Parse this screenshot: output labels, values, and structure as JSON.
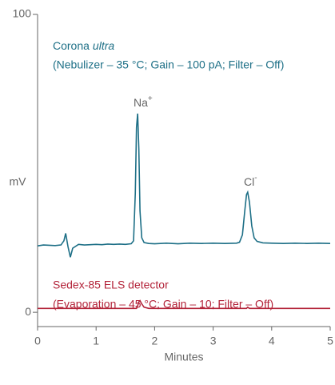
{
  "chart_data": {
    "type": "line",
    "xlabel": "Minutes",
    "ylabel": "mV",
    "xlim": [
      0,
      5
    ],
    "xticks": [
      0,
      1,
      2,
      3,
      4,
      5
    ],
    "ylim": [
      -4.8,
      100
    ],
    "yticks": [
      0,
      100
    ],
    "x": [
      0,
      0.1,
      0.2,
      0.3,
      0.4,
      0.45,
      0.48,
      0.52,
      0.56,
      0.6,
      0.7,
      0.8,
      0.9,
      1.0,
      1.1,
      1.2,
      1.3,
      1.4,
      1.5,
      1.6,
      1.64,
      1.67,
      1.69,
      1.71,
      1.73,
      1.75,
      1.78,
      1.82,
      1.9,
      2.0,
      2.2,
      2.4,
      2.6,
      2.8,
      3.0,
      3.2,
      3.4,
      3.45,
      3.5,
      3.54,
      3.57,
      3.59,
      3.62,
      3.66,
      3.7,
      3.75,
      3.85,
      4.0,
      4.2,
      4.4,
      4.6,
      4.8,
      5.0
    ],
    "series": [
      {
        "name": "Corona",
        "name_italic": "ultra",
        "settings": "(Nebulizer – 35 °C; Gain – 100 pA; Filter – Off)",
        "color": "#1d6f86",
        "values": [
          22.3,
          22.6,
          22.5,
          22.4,
          22.6,
          24,
          26.5,
          22,
          18.5,
          21.5,
          22.8,
          22.6,
          22.7,
          22.8,
          22.7,
          22.9,
          22.8,
          22.9,
          22.8,
          23,
          24,
          40,
          62,
          66.7,
          55,
          34,
          25,
          23.4,
          23.1,
          23,
          23.2,
          23,
          23.2,
          23.1,
          23.2,
          23.1,
          23.2,
          23.5,
          26,
          34,
          39.5,
          40.3,
          37,
          29,
          25,
          23.8,
          23.3,
          23.2,
          23.1,
          23.2,
          23.1,
          23.2,
          23.1
        ]
      },
      {
        "name": "Sedex-85 ELS detector",
        "settings": "(Evaporation – 45 °C; Gain – 10; Filter – Off)",
        "color": "#b32339",
        "values": [
          1.3,
          1.3,
          1.3,
          1.3,
          1.3,
          1.3,
          1.3,
          1.3,
          1.3,
          1.3,
          1.3,
          1.3,
          1.3,
          1.3,
          1.3,
          1.3,
          1.3,
          1.3,
          1.3,
          1.3,
          1.3,
          1.3,
          1.3,
          2.2,
          3.5,
          3.9,
          2.8,
          1.7,
          1.3,
          1.3,
          1.3,
          1.3,
          1.3,
          1.3,
          1.3,
          1.3,
          1.3,
          1.3,
          1.3,
          1.3,
          1.3,
          1.7,
          1.3,
          1.3,
          1.3,
          1.3,
          1.3,
          1.3,
          1.3,
          1.3,
          1.3,
          1.3,
          1.3
        ]
      }
    ],
    "peak_labels": [
      {
        "text": "Na",
        "sup": "+"
      },
      {
        "text": "Cl",
        "sup": "-"
      }
    ]
  }
}
